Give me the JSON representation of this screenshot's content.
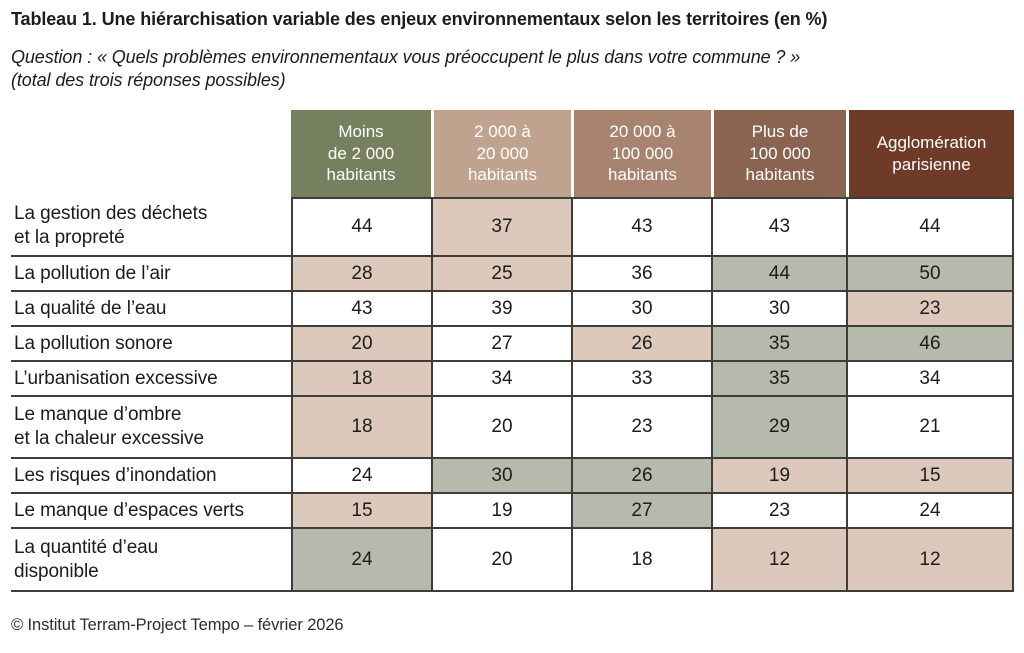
{
  "page": {
    "title_prefix": "Tableau 1.",
    "title_rest": " Une hiérarchisation variable des enjeux environnementaux selon les territoires (en %)",
    "question_label": "Question : ",
    "question_quote": "« Quels problèmes environnementaux vous préoccupent le plus dans votre commune ? »",
    "question_note": "(total des trois réponses possibles)",
    "credit": "© Institut Terram-Project Tempo – février 2026"
  },
  "colors": {
    "border": "#3e3d39",
    "text": "#1d1c1a",
    "header_text": "#ffffff"
  },
  "chart_data": {
    "type": "table",
    "title": "Tableau 1. Une hiérarchisation variable des enjeux environnementaux selon les territoires (en %)",
    "subtitle": "Question : « Quels problèmes environnementaux vous préoccupent le plus dans votre commune ? » (total des trois réponses possibles)",
    "unit": "%",
    "columns": [
      {
        "label": "Moins de 2 000 habitants",
        "lines": [
          "Moins",
          "de 2 000",
          "habitants"
        ]
      },
      {
        "label": "2 000 à 20 000 habitants",
        "lines": [
          "2 000 à",
          "20 000",
          "habitants"
        ]
      },
      {
        "label": "20 000 à 100 000 habitants",
        "lines": [
          "20 000 à",
          "100 000",
          "habitants"
        ]
      },
      {
        "label": "Plus de 100 000 habitants",
        "lines": [
          "Plus de",
          "100 000",
          "habitants"
        ]
      },
      {
        "label": "Agglomération parisienne",
        "lines": [
          "Agglomération",
          "parisienne"
        ]
      }
    ],
    "column_colors": [
      "#76805e",
      "#c0a38e",
      "#a88370",
      "#8a6450",
      "#6e3b28"
    ],
    "highlight_colors": {
      "tan": "#dcc9bc",
      "sage": "#b5baac"
    },
    "rows": [
      {
        "label": "La gestion des déchets\net la propreté",
        "values": [
          44,
          37,
          43,
          43,
          44
        ],
        "highlights": [
          null,
          "tan",
          null,
          null,
          null
        ]
      },
      {
        "label": "La pollution de l’air",
        "values": [
          28,
          25,
          36,
          44,
          50
        ],
        "highlights": [
          "tan",
          "tan",
          null,
          "sage",
          "sage"
        ]
      },
      {
        "label": "La qualité de l’eau",
        "values": [
          43,
          39,
          30,
          30,
          23
        ],
        "highlights": [
          null,
          null,
          null,
          null,
          "tan"
        ]
      },
      {
        "label": "La pollution sonore",
        "values": [
          20,
          27,
          26,
          35,
          46
        ],
        "highlights": [
          "tan",
          null,
          "tan",
          "sage",
          "sage"
        ]
      },
      {
        "label": "L’urbanisation excessive",
        "values": [
          18,
          34,
          33,
          35,
          34
        ],
        "highlights": [
          "tan",
          null,
          null,
          "sage",
          null
        ]
      },
      {
        "label": "Le manque d’ombre\net la chaleur excessive",
        "values": [
          18,
          20,
          23,
          29,
          21
        ],
        "highlights": [
          "tan",
          null,
          null,
          "sage",
          null
        ]
      },
      {
        "label": "Les risques d’inondation",
        "values": [
          24,
          30,
          26,
          19,
          15
        ],
        "highlights": [
          null,
          "sage",
          "sage",
          "tan",
          "tan"
        ]
      },
      {
        "label": "Le manque d’espaces verts",
        "values": [
          15,
          19,
          27,
          23,
          24
        ],
        "highlights": [
          "tan",
          null,
          "sage",
          null,
          null
        ]
      },
      {
        "label": "La quantité d’eau\ndisponible",
        "values": [
          24,
          20,
          18,
          12,
          12
        ],
        "highlights": [
          "sage",
          null,
          null,
          "tan",
          "tan"
        ]
      }
    ],
    "footer": "© Institut Terram-Project Tempo – février 2026"
  }
}
